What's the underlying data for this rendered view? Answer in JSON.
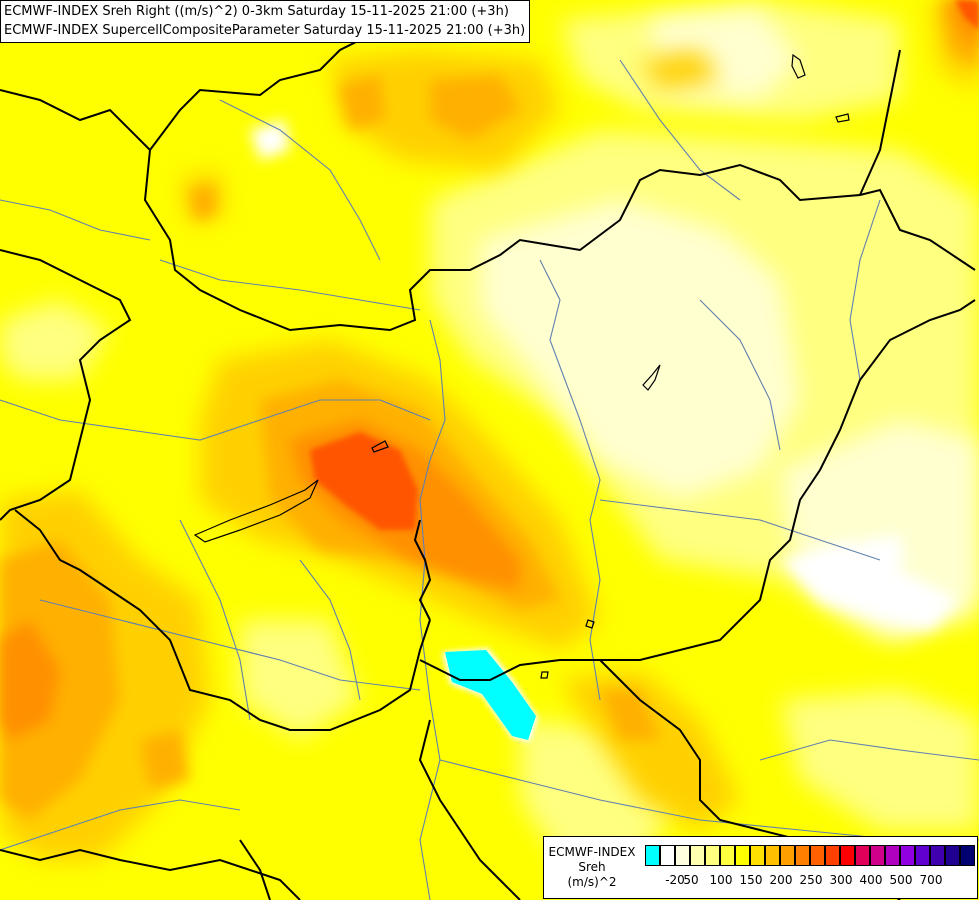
{
  "titles": [
    "ECMWF-INDEX Sreh Right ((m/s)^2) 0-3km Saturday 15-11-2025 21:00 (+3h)",
    "ECMWF-INDEX SupercellCompositeParameter Saturday 15-11-2025 21:00 (+3h)"
  ],
  "legend": {
    "model": "ECMWF-INDEX",
    "parameter": "Sreh",
    "unit": "(m/s)^2",
    "colors": [
      "#00ffff",
      "#ffffff",
      "#ffffe0",
      "#ffffb0",
      "#ffff80",
      "#ffff40",
      "#ffff00",
      "#ffe000",
      "#ffc000",
      "#ffa000",
      "#ff8000",
      "#ff6000",
      "#ff4000",
      "#ff0000",
      "#e0005a",
      "#d0008a",
      "#b000c0",
      "#9000e0",
      "#6000d0",
      "#4000b0",
      "#200090",
      "#000070"
    ],
    "ticks": [
      "-20",
      "50",
      "100",
      "150",
      "200",
      "250",
      "300",
      "400",
      "500",
      "700"
    ]
  },
  "colors": {
    "base": "#ffff00",
    "light_yellow": "#ffff80",
    "pale_yellow": "#ffffc0",
    "amber": "#ffd000",
    "orange_light": "#ffb000",
    "orange": "#ff9000",
    "orange_dark": "#ff5000",
    "negative": "#00ffff",
    "border": "#000000",
    "river": "#6080b0"
  }
}
